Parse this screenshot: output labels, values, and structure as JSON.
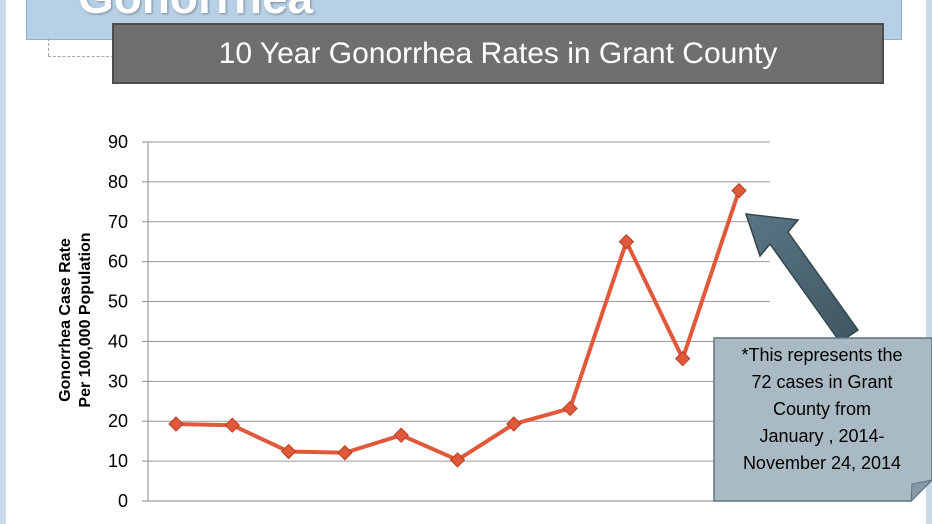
{
  "slide": {
    "header_title": "Gonorrhea",
    "chart_title": "10 Year Gonorrhea Rates in Grant County"
  },
  "chart_data": {
    "type": "line",
    "title": "10 Year Gonorrhea Rates in Grant County",
    "ylabel_line1": "Gonorrhea Case Rate",
    "ylabel_line2": "Per 100,000 Population",
    "xlabel": "",
    "ylim": [
      0,
      90
    ],
    "yticks": [
      0,
      10,
      20,
      30,
      40,
      50,
      60,
      70,
      80,
      90
    ],
    "grid": true,
    "legend": "none",
    "series": [
      {
        "values": [
          19.3,
          19.0,
          12.4,
          12.1,
          16.5,
          10.3,
          19.3,
          23.2,
          65.0,
          35.7,
          77.8
        ],
        "color": "#e0593a"
      }
    ],
    "annotation": {
      "text": "*This represents the\n72 cases in Grant\nCounty from\nJanuary , 2014-\nNovember 24, 2014",
      "arrow_color": "#4f6877",
      "box_color": "#a9bac4"
    }
  }
}
